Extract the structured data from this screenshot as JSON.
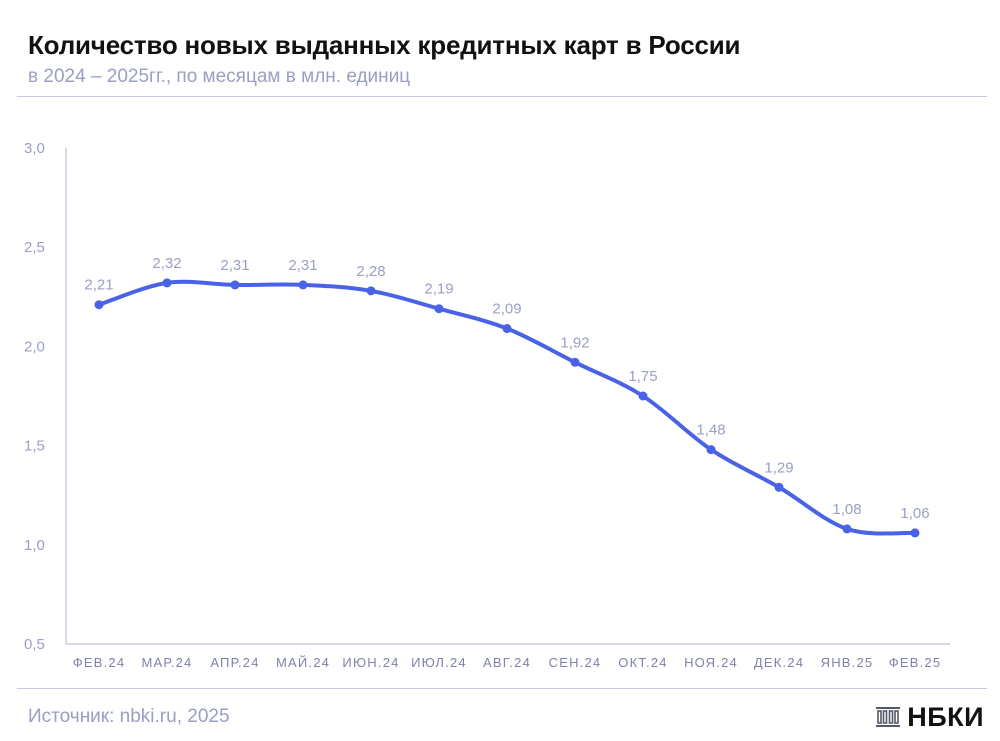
{
  "header": {
    "title": "Количество новых выданных кредитных карт в России",
    "subtitle": "в 2024 – 2025гг., по месяцам в млн. единиц"
  },
  "footer": {
    "source": "Источник: nbki.ru, 2025",
    "logo_text": "НБКИ"
  },
  "colors": {
    "line": "#4a63e6",
    "axis": "#c9cce0",
    "text_muted": "#9a9fc4"
  },
  "chart_data": {
    "type": "line",
    "title": "Количество новых выданных кредитных карт в России",
    "subtitle": "в 2024 – 2025гг., по месяцам в млн. единиц",
    "xlabel": "",
    "ylabel": "",
    "categories": [
      "ФЕВ.24",
      "МАР.24",
      "АПР.24",
      "МАЙ.24",
      "ИЮН.24",
      "ИЮЛ.24",
      "АВГ.24",
      "СЕН.24",
      "ОКТ.24",
      "НОЯ.24",
      "ДЕК.24",
      "ЯНВ.25",
      "ФЕВ.25"
    ],
    "series": [
      {
        "values": [
          2.21,
          2.32,
          2.31,
          2.31,
          2.28,
          2.19,
          2.09,
          1.92,
          1.75,
          1.48,
          1.29,
          1.08,
          1.06
        ]
      }
    ],
    "data_labels": [
      "2,21",
      "2,32",
      "2,31",
      "2,31",
      "2,28",
      "2,19",
      "2,09",
      "1,92",
      "1,75",
      "1,48",
      "1,29",
      "1,08",
      "1,06"
    ],
    "yticks": [
      0.5,
      1.0,
      1.5,
      2.0,
      2.5,
      3.0
    ],
    "ytick_labels": [
      "0,5",
      "1,0",
      "1,5",
      "2,0",
      "2,5",
      "3,0"
    ],
    "ylim": [
      0.5,
      3.0
    ],
    "grid": false,
    "legend": "none"
  }
}
